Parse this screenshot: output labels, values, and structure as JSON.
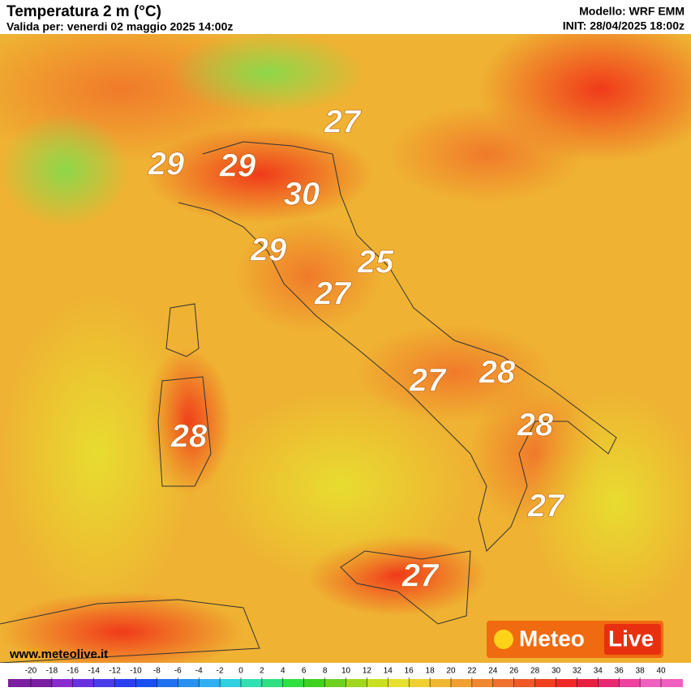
{
  "header": {
    "title": "Temperatura 2 m (°C)",
    "valid": "Valida per: venerdi 02 maggio 2025 14:00z",
    "model": "Modello: WRF EMM",
    "init": "INIT: 28/04/2025 18:00z"
  },
  "map_labels": [
    27,
    29,
    29,
    30,
    29,
    25,
    27,
    27,
    28,
    28,
    28,
    27,
    27
  ],
  "website": "www.meteolive.it",
  "logo": {
    "part1": "Meteo",
    "part2": "Live"
  },
  "scale": {
    "ticks": [
      -20,
      -18,
      -16,
      -14,
      -12,
      -10,
      -8,
      -6,
      -4,
      -2,
      0,
      2,
      4,
      6,
      8,
      10,
      12,
      14,
      16,
      18,
      20,
      22,
      24,
      26,
      28,
      30,
      32,
      34,
      36,
      38,
      40
    ],
    "colors": [
      "#7a1fa0",
      "#8a2bd0",
      "#6a30e0",
      "#4a3ce8",
      "#2a40f0",
      "#1a50f0",
      "#2070f0",
      "#2890f0",
      "#30b0f0",
      "#30d0e0",
      "#30e0b0",
      "#30e080",
      "#30e040",
      "#40d020",
      "#70d020",
      "#a0d820",
      "#c8e020",
      "#e8e030",
      "#f0d030",
      "#f0b830",
      "#f0a030",
      "#f08830",
      "#f07030",
      "#f05828",
      "#f04020",
      "#f02828",
      "#e82040",
      "#e82870",
      "#f040a0",
      "#f060c0"
    ]
  }
}
